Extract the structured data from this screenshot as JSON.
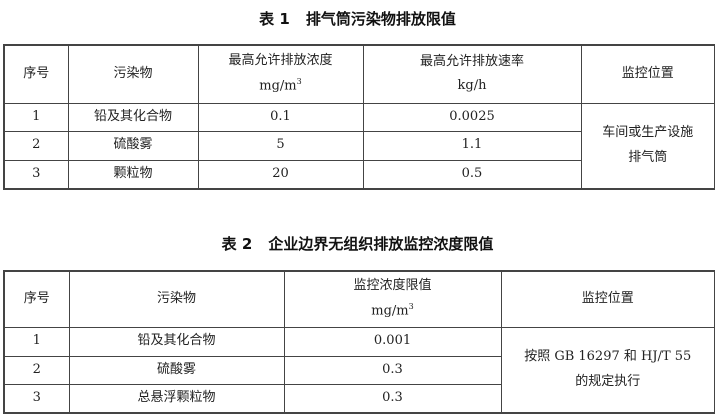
{
  "table1": {
    "number": "表 1",
    "title": "排气筒污染物排放限值",
    "headers": {
      "seq": "序号",
      "pollutant": "污染物",
      "conc": "最高允许排放浓度",
      "conc_unit": "mg/m",
      "conc_unit_sup": "3",
      "rate": "最高允许排放速率",
      "rate_unit": "kg/h",
      "location": "监控位置"
    },
    "rows": [
      {
        "seq": "1",
        "pollutant": "铅及其化合物",
        "conc": "0.1",
        "rate": "0.0025"
      },
      {
        "seq": "2",
        "pollutant": "硫酸雾",
        "conc": "5",
        "rate": "1.1"
      },
      {
        "seq": "3",
        "pollutant": "颗粒物",
        "conc": "20",
        "rate": "0.5"
      }
    ],
    "location_line1": "车间或生产设施",
    "location_line2": "排气筒"
  },
  "table2": {
    "number": "表 2",
    "title": "企业边界无组织排放监控浓度限值",
    "headers": {
      "seq": "序号",
      "pollutant": "污染物",
      "conc": "监控浓度限值",
      "conc_unit": "mg/m",
      "conc_unit_sup": "3",
      "location": "监控位置"
    },
    "rows": [
      {
        "seq": "1",
        "pollutant": "铅及其化合物",
        "conc": "0.001"
      },
      {
        "seq": "2",
        "pollutant": "硫酸雾",
        "conc": "0.3"
      },
      {
        "seq": "3",
        "pollutant": "总悬浮颗粒物",
        "conc": "0.3"
      }
    ],
    "location_line1": "按照 GB 16297 和 HJ/T 55",
    "location_line2": "的规定执行"
  }
}
